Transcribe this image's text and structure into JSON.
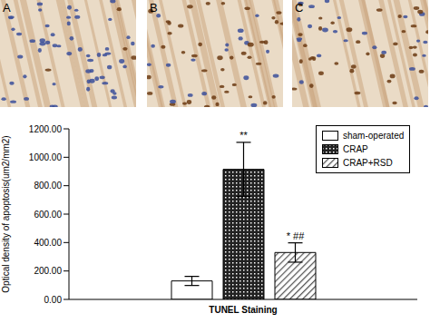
{
  "panels": [
    {
      "label": "A"
    },
    {
      "label": "B"
    },
    {
      "label": "C"
    }
  ],
  "chart_data": {
    "type": "bar",
    "categories": [
      "TUNEL Staining"
    ],
    "y_label": "Optical density of apoptosis(um2/mm2)",
    "ylim": [
      0,
      1200
    ],
    "yticks": [
      {
        "value": 0,
        "label": "0.00"
      },
      {
        "value": 200,
        "label": "200.00"
      },
      {
        "value": 400,
        "label": "400.00"
      },
      {
        "value": 600,
        "label": "600.00"
      },
      {
        "value": 800,
        "label": "800.00"
      },
      {
        "value": 1000,
        "label": "1000.00"
      },
      {
        "value": 1200,
        "label": "1200.00"
      }
    ],
    "grid": false,
    "legend": "upper right",
    "series": [
      {
        "name": "sham-operated",
        "color": "#ffffff",
        "values": [
          130
        ],
        "errors": [
          32
        ],
        "annotation": ""
      },
      {
        "name": "CRAP",
        "color": "#222222",
        "values": [
          915
        ],
        "errors": [
          190
        ],
        "annotation": "**"
      },
      {
        "name": "CRAP+RSD",
        "color": "#555555",
        "values": [
          330
        ],
        "errors": [
          68
        ],
        "annotation": "* ##"
      }
    ]
  }
}
